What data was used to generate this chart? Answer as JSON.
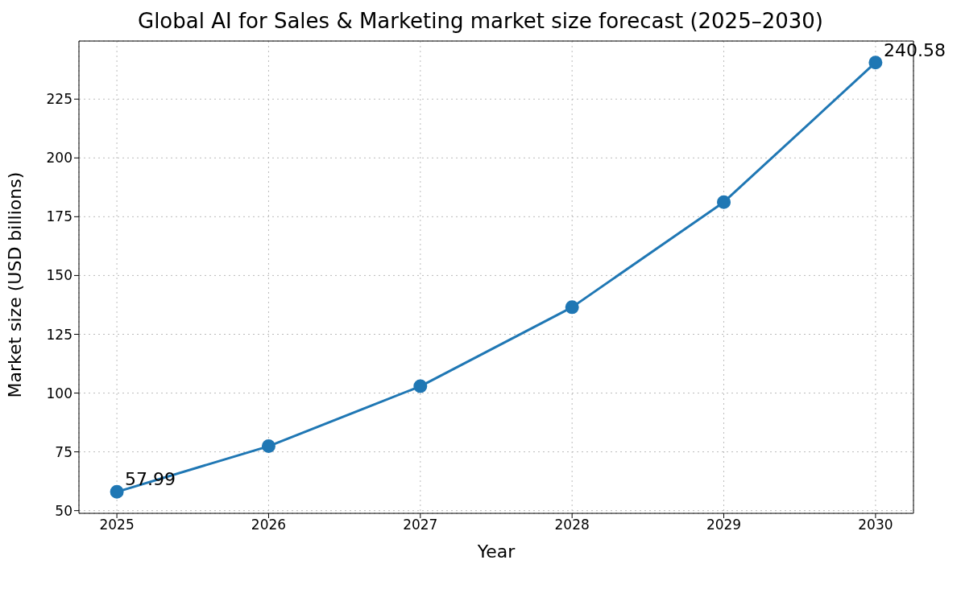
{
  "chart_data": {
    "type": "line",
    "title": "Global AI for Sales & Marketing market size forecast (2025–2030)",
    "xlabel": "Year",
    "ylabel": "Market size (USD billions)",
    "x": [
      2025,
      2026,
      2027,
      2028,
      2029,
      2030
    ],
    "series": [
      {
        "color": "#1f77b4",
        "values": [
          57.99,
          77.4,
          102.9,
          136.5,
          181.2,
          240.58
        ],
        "value_labels": [
          "57.99",
          null,
          null,
          null,
          null,
          "240.58"
        ]
      }
    ],
    "xlim": [
      2024.75,
      2030.25
    ],
    "xticks": [
      2025,
      2026,
      2027,
      2028,
      2029,
      2030
    ],
    "ylim": [
      48.86,
      249.71
    ],
    "yticks": [
      50,
      75,
      100,
      125,
      150,
      175,
      200,
      225
    ],
    "grid": true,
    "marker": "circle",
    "line_style": "solid",
    "legend": false
  }
}
